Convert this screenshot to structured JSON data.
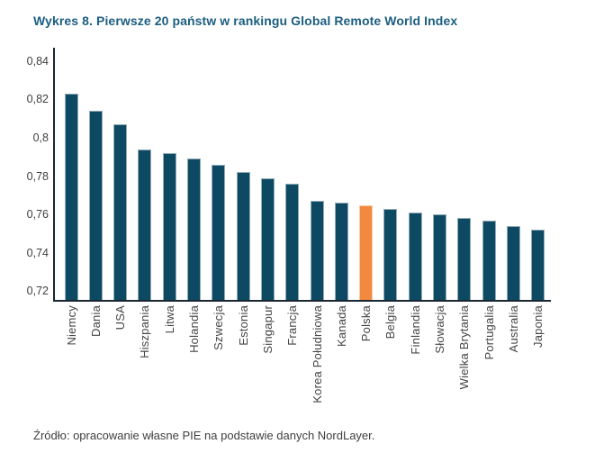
{
  "title": "Wykres 8. Pierwsze 20 państw w rankingu Global Remote World Index",
  "source": "Źródło: opracowanie własne PIE na podstawie danych NordLayer.",
  "colors": {
    "title_text": "#1b5e81",
    "axis_line": "#1a2632",
    "tick_text": "#3f3f3f",
    "bar": "#0d4963",
    "highlight_bar": "#f18a3e",
    "background": "#ffffff"
  },
  "chart_data": {
    "type": "bar",
    "title": "Wykres 8. Pierwsze 20 państw w rankingu Global Remote World Index",
    "xlabel": "",
    "ylabel": "",
    "categories": [
      "Niemcy",
      "Dania",
      "USA",
      "Hiszpania",
      "Litwa",
      "Holandia",
      "Szwecja",
      "Estonia",
      "Singapur",
      "Francja",
      "Korea Południowa",
      "Kanada",
      "Polska",
      "Belgia",
      "Finlandia",
      "Słowacja",
      "Wielka Brytania",
      "Portugalia",
      "Australia",
      "Japonia"
    ],
    "values": [
      0.823,
      0.814,
      0.807,
      0.794,
      0.792,
      0.789,
      0.786,
      0.782,
      0.779,
      0.776,
      0.767,
      0.766,
      0.765,
      0.763,
      0.761,
      0.76,
      0.758,
      0.757,
      0.754,
      0.752
    ],
    "highlight_category": "Polska",
    "highlight_color": "#f18a3e",
    "bar_color": "#0d4963",
    "ylim": [
      0.715,
      0.846
    ],
    "yticks": [
      {
        "value": 0.84,
        "label": "0,84"
      },
      {
        "value": 0.82,
        "label": "0,82"
      },
      {
        "value": 0.8,
        "label": "0,8"
      },
      {
        "value": 0.78,
        "label": "0,78"
      },
      {
        "value": 0.76,
        "label": "0,76"
      },
      {
        "value": 0.74,
        "label": "0,74"
      },
      {
        "value": 0.72,
        "label": "0,72"
      }
    ],
    "grid": false,
    "legend": null,
    "xtick_rotation": 90
  }
}
